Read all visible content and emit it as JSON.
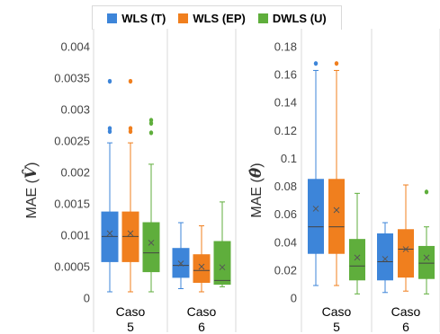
{
  "legend": {
    "items": [
      {
        "label": "WLS (T)",
        "color": "#3d85d9"
      },
      {
        "label": "WLS (EP)",
        "color": "#f07f1e"
      },
      {
        "label": "DWLS (U)",
        "color": "#5fae3c"
      }
    ]
  },
  "chart_data": [
    {
      "type": "box",
      "ylabel_prefix": "MAE",
      "ylabel_symbol": "V̂",
      "ylim": [
        0,
        0.004
      ],
      "yticks": [
        "0",
        "0.0005",
        "0.001",
        "0.0015",
        "0.002",
        "0.0025",
        "0.003",
        "0.0035",
        "0.004"
      ],
      "grid": false,
      "groups": [
        {
          "label": [
            "Caso",
            "5"
          ],
          "boxes": [
            {
              "series": "WLS (T)",
              "min": 0.0001,
              "q1": 0.00058,
              "median": 0.00098,
              "q3": 0.00137,
              "max": 0.00247,
              "mean": 0.00103,
              "outliers": [
                0.00265,
                0.0027,
                0.00345
              ]
            },
            {
              "series": "WLS (EP)",
              "min": 0.0001,
              "q1": 0.00058,
              "median": 0.00098,
              "q3": 0.00137,
              "max": 0.00247,
              "mean": 0.00103,
              "outliers": [
                0.00265,
                0.0027,
                0.00345
              ]
            },
            {
              "series": "DWLS (U)",
              "min": 0.0001,
              "q1": 0.00042,
              "median": 0.00072,
              "q3": 0.0012,
              "max": 0.00213,
              "mean": 0.00088,
              "outliers": [
                0.00263,
                0.00278,
                0.00283
              ]
            }
          ]
        },
        {
          "label": [
            "Caso",
            "6"
          ],
          "boxes": [
            {
              "series": "WLS (T)",
              "min": 0.00015,
              "q1": 0.00033,
              "median": 0.00052,
              "q3": 0.00079,
              "max": 0.0012,
              "mean": 0.00055,
              "outliers": []
            },
            {
              "series": "WLS (EP)",
              "min": 0.0001,
              "q1": 0.00025,
              "median": 0.00044,
              "q3": 0.00069,
              "max": 0.00115,
              "mean": 0.0005,
              "outliers": []
            },
            {
              "series": "DWLS (U)",
              "min": 0.00018,
              "q1": 0.00022,
              "median": 0.00028,
              "q3": 0.0009,
              "max": 0.00153,
              "mean": 0.00049,
              "outliers": []
            }
          ]
        }
      ]
    },
    {
      "type": "box",
      "ylabel_prefix": "MAE",
      "ylabel_symbol": "θ̂",
      "ylim": [
        0,
        0.18
      ],
      "yticks": [
        "0",
        "0.02",
        "0.04",
        "0.06",
        "0.08",
        "0.1",
        "0.12",
        "0.14",
        "0.16",
        "0.18"
      ],
      "grid": false,
      "groups": [
        {
          "label": [
            "Caso",
            "5"
          ],
          "boxes": [
            {
              "series": "WLS (T)",
              "min": 0.009,
              "q1": 0.032,
              "median": 0.051,
              "q3": 0.085,
              "max": 0.163,
              "mean": 0.064,
              "outliers": [
                0.168
              ]
            },
            {
              "series": "WLS (EP)",
              "min": 0.009,
              "q1": 0.032,
              "median": 0.051,
              "q3": 0.085,
              "max": 0.163,
              "mean": 0.063,
              "outliers": [
                0.168
              ]
            },
            {
              "series": "DWLS (U)",
              "min": 0.003,
              "q1": 0.013,
              "median": 0.023,
              "q3": 0.042,
              "max": 0.075,
              "mean": 0.029,
              "outliers": []
            }
          ]
        },
        {
          "label": [
            "Caso",
            "6"
          ],
          "boxes": [
            {
              "series": "WLS (T)",
              "min": 0.004,
              "q1": 0.013,
              "median": 0.026,
              "q3": 0.046,
              "max": 0.054,
              "mean": 0.028,
              "outliers": []
            },
            {
              "series": "WLS (EP)",
              "min": 0.005,
              "q1": 0.015,
              "median": 0.035,
              "q3": 0.049,
              "max": 0.081,
              "mean": 0.035,
              "outliers": []
            },
            {
              "series": "DWLS (U)",
              "min": 0.003,
              "q1": 0.014,
              "median": 0.025,
              "q3": 0.037,
              "max": 0.051,
              "mean": 0.029,
              "outliers": [
                0.076
              ]
            }
          ]
        }
      ]
    }
  ]
}
